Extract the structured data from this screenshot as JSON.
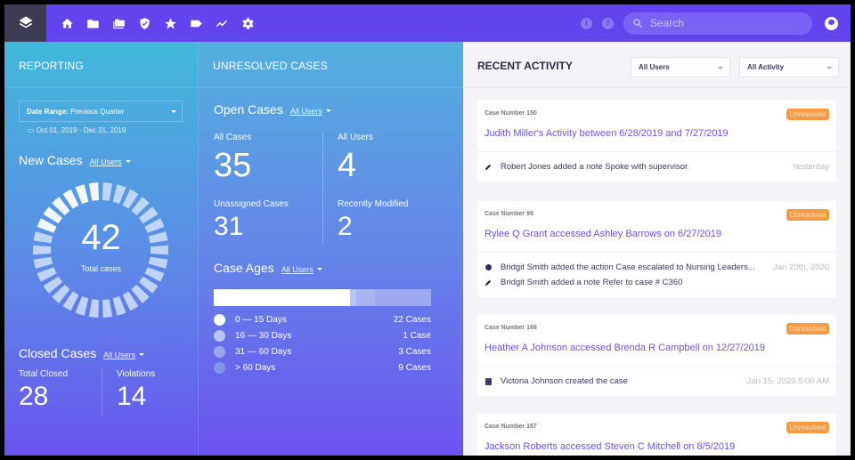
{
  "nav": {
    "icons": [
      "layers-icon",
      "home-icon",
      "folder-icon",
      "folders-icon",
      "shield-check-icon",
      "star-icon",
      "tag-icon",
      "trend-icon",
      "gear-icon"
    ],
    "search_placeholder": "Search"
  },
  "reporting": {
    "title": "REPORTING",
    "date_range_label": "Date Range:",
    "date_range_value": "Previous Quarter",
    "dates": "Oct 01, 2019 - Dec 31, 2019",
    "new_cases": {
      "title": "New Cases",
      "filter": "All Users",
      "total": "42",
      "total_label": "Total cases"
    },
    "closed_cases": {
      "title": "Closed Cases",
      "filter": "All Users",
      "total_closed_label": "Total Closed",
      "total_closed": "28",
      "violations_label": "Violations",
      "violations": "14"
    }
  },
  "unresolved": {
    "title": "UNRESOLVED CASES",
    "open_cases": {
      "title": "Open Cases",
      "filter": "All Users",
      "all_cases_label": "All Cases",
      "all_cases": "35",
      "all_users_label": "All Users",
      "all_users": "4",
      "unassigned_label": "Unassigned Cases",
      "unassigned": "31",
      "recent_label": "Recently Modified",
      "recent": "2"
    },
    "case_ages": {
      "title": "Case Ages",
      "filter": "All Users",
      "rows": [
        {
          "label": "0 — 15 Days",
          "count": "22 Cases",
          "value": 22,
          "color": "#ffffff"
        },
        {
          "label": "16 — 30 Days",
          "count": "1 Case",
          "value": 1,
          "color": "#b9c2f6"
        },
        {
          "label": "31 — 60 Days",
          "count": "3 Cases",
          "value": 3,
          "color": "#9aa4f2"
        },
        {
          "label": "> 60 Days",
          "count": "9 Cases",
          "value": 9,
          "color": "#8296ec"
        }
      ]
    }
  },
  "activity": {
    "title": "RECENT ACTIVITY",
    "user_filter": "All Users",
    "activity_filter": "All Activity",
    "cards": [
      {
        "case": "Case Number 150",
        "status": "Unresolved",
        "title": "Judith Miller's Activity between 6/28/2019 and 7/27/2019",
        "items": [
          {
            "icon": "pencil-icon",
            "text": "Robert Jones added a note Spoke with supervisor",
            "time": "Yesterday"
          }
        ]
      },
      {
        "case": "Case Number 98",
        "status": "Unresolved",
        "title": "Rylee Q Grant accessed Ashley Barrows on 6/27/2019",
        "items": [
          {
            "icon": "dot-icon",
            "text": "Bridgit Smith added the action Case escalated to Nursing Leaders...",
            "time": "Jan 20th, 2020"
          },
          {
            "icon": "pencil-icon",
            "text": "Bridgit Smith added a note Refer to case # C360",
            "time": ""
          }
        ]
      },
      {
        "case": "Case Number 168",
        "status": "Unresolved",
        "title": "Heather A Johnson accessed Brenda R Campbell on 12/27/2019",
        "items": [
          {
            "icon": "clipboard-icon",
            "text": "Victoria Johnson created the case",
            "time": "Jan 15, 2020 5:00 AM"
          }
        ]
      },
      {
        "case": "Case Number 167",
        "status": "Unresolved",
        "title": "Jackson Roberts accessed Steven C Mitchell on 8/5/2019",
        "items": []
      }
    ]
  }
}
